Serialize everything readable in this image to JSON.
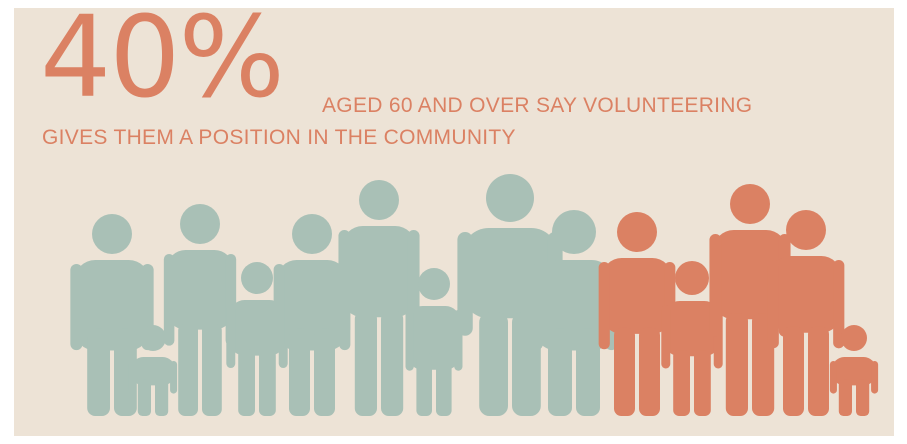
{
  "headline": {
    "stat": "40%",
    "line1": "AGED 60 AND OVER SAY VOLUNTEERING",
    "line2": "GIVES THEM A POSITION IN THE COMMUNITY"
  },
  "colors": {
    "background": "#ede3d6",
    "accent": "#db8163",
    "neutral": "#a9c0b6"
  },
  "figures": {
    "total": 15,
    "highlighted": 6,
    "icon": "person-icon"
  }
}
